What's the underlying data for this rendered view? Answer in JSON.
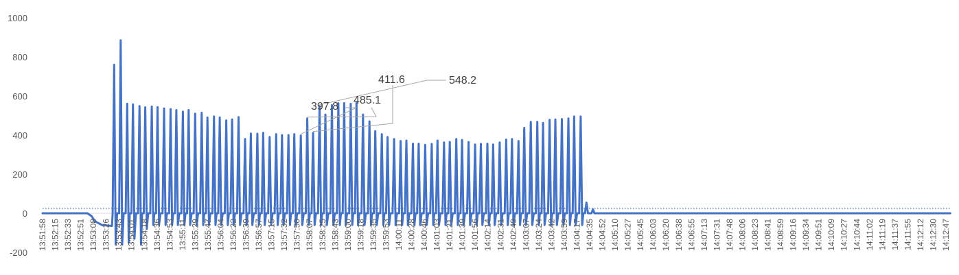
{
  "chart_data": {
    "type": "line",
    "title": "",
    "xlabel": "",
    "ylabel": "",
    "ylim": [
      -200,
      1000
    ],
    "yticks": [
      -200,
      0,
      200,
      400,
      600,
      800,
      1000
    ],
    "grid": false,
    "legend": "none",
    "colors": {
      "series": "#4472C4",
      "reference": "#4472C4",
      "axis": "#D9D9D9",
      "text": "#595959"
    },
    "x_tick_labels": [
      "13:51:58",
      "13:52:15",
      "13:52:33",
      "13:52:51",
      "13:53:08",
      "13:53:26",
      "13:53:43",
      "13:54:01",
      "13:54:18",
      "13:54:36",
      "13:54:53",
      "13:55:11",
      "13:55:29",
      "13:55:47",
      "13:56:04",
      "13:56:22",
      "13:56:39",
      "13:56:57",
      "13:57:15",
      "13:57:32",
      "13:57:50",
      "13:58:07",
      "13:58:25",
      "13:58:43",
      "13:59:00",
      "13:59:18",
      "13:59:35",
      "13:59:53",
      "14:00:11",
      "14:00:28",
      "14:00:46",
      "14:01:03",
      "14:01:21",
      "14:01:39",
      "14:01:56",
      "14:02:14",
      "14:02:31",
      "14:02:49",
      "14:03:07",
      "14:03:24",
      "14:03:42",
      "14:03:59",
      "14:04:17",
      "14:04:35",
      "14:04:52",
      "14:05:10",
      "14:05:27",
      "14:05:45",
      "14:06:03",
      "14:06:20",
      "14:06:38",
      "14:06:55",
      "14:07:13",
      "14:07:31",
      "14:07:48",
      "14:08:06",
      "14:08:23",
      "14:08:41",
      "14:08:59",
      "14:09:16",
      "14:09:34",
      "14:09:51",
      "14:10:09",
      "14:10:27",
      "14:10:44",
      "14:11:02",
      "14:11:19",
      "14:11:37",
      "14:11:55",
      "14:12:12",
      "14:12:30",
      "14:12:47"
    ],
    "reference_line": {
      "y": 25,
      "style": "dotted"
    },
    "pre_levels": [
      {
        "time": "13:51:58",
        "value": 0
      },
      {
        "time": "13:53:00",
        "value": 0
      },
      {
        "time": "13:53:06",
        "value": -15
      },
      {
        "time": "13:53:10",
        "value": -40
      },
      {
        "time": "13:53:20",
        "value": -60
      },
      {
        "time": "13:53:34",
        "value": -65
      }
    ],
    "spikes": [
      {
        "time": "13:53:37",
        "peak": 760,
        "trough": -160
      },
      {
        "time": "13:53:46",
        "peak": 885,
        "trough": -160
      },
      {
        "time": "13:53:55",
        "peak": 560,
        "trough": -150
      },
      {
        "time": "13:54:03",
        "peak": 557,
        "trough": -130
      },
      {
        "time": "13:54:12",
        "peak": 548,
        "trough": -160
      },
      {
        "time": "13:54:20",
        "peak": 542,
        "trough": -80
      },
      {
        "time": "13:54:29",
        "peak": 546,
        "trough": -60
      },
      {
        "time": "13:54:37",
        "peak": 543,
        "trough": -60
      },
      {
        "time": "13:54:46",
        "peak": 536,
        "trough": -60
      },
      {
        "time": "13:54:55",
        "peak": 533,
        "trough": -60
      },
      {
        "time": "13:55:03",
        "peak": 528,
        "trough": -60
      },
      {
        "time": "13:55:12",
        "peak": 520,
        "trough": -60
      },
      {
        "time": "13:55:20",
        "peak": 528,
        "trough": -60
      },
      {
        "time": "13:55:29",
        "peak": 510,
        "trough": -60
      },
      {
        "time": "13:55:38",
        "peak": 514,
        "trough": -60
      },
      {
        "time": "13:55:46",
        "peak": 490,
        "trough": -60
      },
      {
        "time": "13:55:55",
        "peak": 495,
        "trough": -60
      },
      {
        "time": "13:56:03",
        "peak": 490,
        "trough": -60
      },
      {
        "time": "13:56:12",
        "peak": 475,
        "trough": -60
      },
      {
        "time": "13:56:20",
        "peak": 480,
        "trough": -60
      },
      {
        "time": "13:56:29",
        "peak": 492,
        "trough": -60
      },
      {
        "time": "13:56:38",
        "peak": 380,
        "trough": -60
      },
      {
        "time": "13:56:46",
        "peak": 408,
        "trough": -60
      },
      {
        "time": "13:56:55",
        "peak": 407,
        "trough": -60
      },
      {
        "time": "13:57:03",
        "peak": 412,
        "trough": -60
      },
      {
        "time": "13:57:12",
        "peak": 390,
        "trough": -60
      },
      {
        "time": "13:57:21",
        "peak": 405,
        "trough": -60
      },
      {
        "time": "13:57:29",
        "peak": 400,
        "trough": -60
      },
      {
        "time": "13:57:38",
        "peak": 400,
        "trough": -60
      },
      {
        "time": "13:57:46",
        "peak": 405,
        "trough": -60
      },
      {
        "time": "13:57:55",
        "peak": 397.8,
        "trough": -60,
        "label": "397.8"
      },
      {
        "time": "13:58:04",
        "peak": 485.1,
        "trough": -60,
        "label": "485.1"
      },
      {
        "time": "13:58:12",
        "peak": 411.6,
        "trough": -60,
        "label": "411.6"
      },
      {
        "time": "13:58:21",
        "peak": 548.2,
        "trough": -60,
        "label": "548.2"
      },
      {
        "time": "13:58:29",
        "peak": 505,
        "trough": -60
      },
      {
        "time": "13:58:38",
        "peak": 553,
        "trough": -60
      },
      {
        "time": "13:58:47",
        "peak": 563,
        "trough": -60
      },
      {
        "time": "13:58:55",
        "peak": 563,
        "trough": -60
      },
      {
        "time": "13:59:04",
        "peak": 560,
        "trough": -60
      },
      {
        "time": "13:59:12",
        "peak": 565,
        "trough": -60
      },
      {
        "time": "13:59:21",
        "peak": 505,
        "trough": -60
      },
      {
        "time": "13:59:30",
        "peak": 470,
        "trough": -60
      },
      {
        "time": "13:59:38",
        "peak": 420,
        "trough": -60
      },
      {
        "time": "13:59:47",
        "peak": 405,
        "trough": -60
      },
      {
        "time": "13:59:55",
        "peak": 390,
        "trough": -60
      },
      {
        "time": "14:00:04",
        "peak": 380,
        "trough": -60
      },
      {
        "time": "14:00:13",
        "peak": 370,
        "trough": -60
      },
      {
        "time": "14:00:21",
        "peak": 372,
        "trough": -60
      },
      {
        "time": "14:00:30",
        "peak": 356,
        "trough": -60
      },
      {
        "time": "14:00:38",
        "peak": 356,
        "trough": -60
      },
      {
        "time": "14:00:47",
        "peak": 350,
        "trough": -60
      },
      {
        "time": "14:00:56",
        "peak": 355,
        "trough": -60
      },
      {
        "time": "14:01:04",
        "peak": 372,
        "trough": -60
      },
      {
        "time": "14:01:13",
        "peak": 362,
        "trough": -60
      },
      {
        "time": "14:01:21",
        "peak": 365,
        "trough": -60
      },
      {
        "time": "14:01:30",
        "peak": 380,
        "trough": -60
      },
      {
        "time": "14:01:38",
        "peak": 375,
        "trough": -60
      },
      {
        "time": "14:01:47",
        "peak": 365,
        "trough": -60
      },
      {
        "time": "14:01:56",
        "peak": 352,
        "trough": -60
      },
      {
        "time": "14:02:04",
        "peak": 355,
        "trough": -60
      },
      {
        "time": "14:02:13",
        "peak": 356,
        "trough": -60
      },
      {
        "time": "14:02:21",
        "peak": 352,
        "trough": -60
      },
      {
        "time": "14:02:30",
        "peak": 362,
        "trough": -60
      },
      {
        "time": "14:02:39",
        "peak": 377,
        "trough": -60
      },
      {
        "time": "14:02:47",
        "peak": 380,
        "trough": -60
      },
      {
        "time": "14:02:56",
        "peak": 370,
        "trough": -60
      },
      {
        "time": "14:03:04",
        "peak": 437,
        "trough": -60
      },
      {
        "time": "14:03:13",
        "peak": 468,
        "trough": -60
      },
      {
        "time": "14:03:22",
        "peak": 468,
        "trough": -60
      },
      {
        "time": "14:03:30",
        "peak": 462,
        "trough": -60
      },
      {
        "time": "14:03:39",
        "peak": 478,
        "trough": -60
      },
      {
        "time": "14:03:47",
        "peak": 480,
        "trough": -60
      },
      {
        "time": "14:03:56",
        "peak": 482,
        "trough": -60
      },
      {
        "time": "14:04:05",
        "peak": 485,
        "trough": -60
      },
      {
        "time": "14:04:13",
        "peak": 495,
        "trough": -60
      },
      {
        "time": "14:04:22",
        "peak": 495,
        "trough": -60
      },
      {
        "time": "14:04:30",
        "peak": 55,
        "trough": 0
      },
      {
        "time": "14:04:39",
        "peak": 20,
        "trough": 0
      }
    ],
    "baseline_level": 0,
    "post_level": {
      "time": "14:12:53",
      "value": 0
    },
    "annotations": [
      {
        "text": "397.8",
        "anchor_time": "13:57:55",
        "anchor_value": 397.8
      },
      {
        "text": "485.1",
        "anchor_time": "13:58:04",
        "anchor_value": 485.1
      },
      {
        "text": "411.6",
        "anchor_time": "13:58:12",
        "anchor_value": 411.6
      },
      {
        "text": "548.2",
        "anchor_time": "13:58:21",
        "anchor_value": 548.2
      }
    ]
  }
}
